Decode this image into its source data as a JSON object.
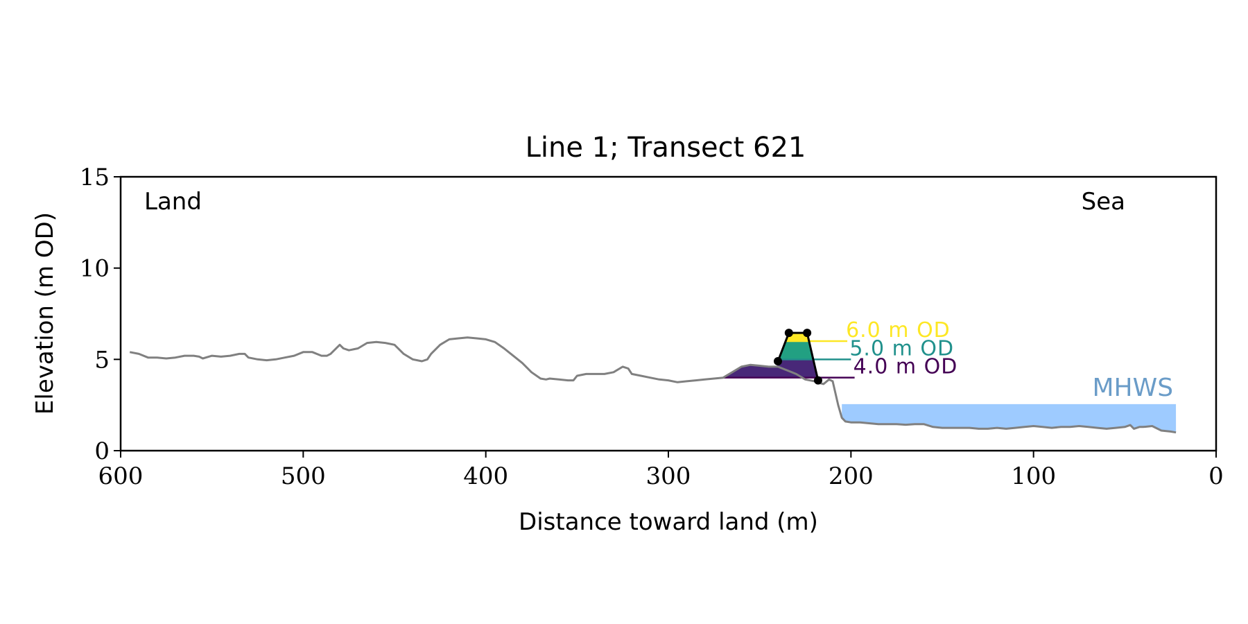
{
  "chart_data": {
    "type": "line",
    "title": "Line 1; Transect 621",
    "xlabel": "Distance toward land (m)",
    "ylabel": "Elevation (m OD)",
    "xlim": [
      600,
      0
    ],
    "ylim": [
      0,
      15
    ],
    "x_ticks": [
      "600",
      "500",
      "400",
      "300",
      "200",
      "100",
      "0"
    ],
    "y_ticks": [
      "15",
      "10",
      "5",
      "0"
    ],
    "grid": false,
    "legend": null,
    "region_labels": {
      "left": "Land",
      "right": "Sea"
    },
    "profile": {
      "color": "#808080",
      "x": [
        595,
        590,
        585,
        580,
        575,
        570,
        565,
        560,
        557,
        555,
        550,
        545,
        540,
        535,
        532,
        530,
        525,
        520,
        515,
        510,
        505,
        500,
        495,
        490,
        487,
        485,
        480,
        478,
        475,
        470,
        465,
        460,
        455,
        450,
        445,
        440,
        435,
        432,
        430,
        425,
        420,
        415,
        410,
        405,
        400,
        395,
        390,
        385,
        380,
        375,
        370,
        367,
        365,
        360,
        355,
        352,
        350,
        345,
        340,
        335,
        330,
        325,
        322,
        320,
        315,
        310,
        305,
        300,
        295,
        290,
        285,
        280,
        275,
        270,
        265,
        260,
        255,
        250,
        245,
        240,
        235,
        230,
        225,
        220,
        217,
        215,
        212,
        210,
        207,
        205,
        203,
        200,
        195,
        190,
        185,
        180,
        175,
        170,
        165,
        160,
        155,
        150,
        145,
        140,
        135,
        130,
        125,
        120,
        115,
        110,
        105,
        100,
        95,
        90,
        85,
        80,
        75,
        70,
        65,
        60,
        55,
        50,
        47,
        45,
        42,
        40,
        35,
        30,
        25,
        22
      ],
      "y": [
        5.4,
        5.3,
        5.1,
        5.1,
        5.05,
        5.1,
        5.2,
        5.2,
        5.15,
        5.05,
        5.2,
        5.15,
        5.2,
        5.3,
        5.3,
        5.1,
        5.0,
        4.95,
        5.0,
        5.1,
        5.2,
        5.4,
        5.4,
        5.2,
        5.2,
        5.3,
        5.8,
        5.6,
        5.5,
        5.6,
        5.9,
        5.95,
        5.9,
        5.8,
        5.3,
        5.0,
        4.9,
        5.0,
        5.3,
        5.8,
        6.1,
        6.15,
        6.2,
        6.15,
        6.1,
        5.95,
        5.6,
        5.2,
        4.8,
        4.3,
        3.95,
        3.9,
        3.95,
        3.9,
        3.85,
        3.85,
        4.1,
        4.2,
        4.2,
        4.2,
        4.3,
        4.6,
        4.5,
        4.2,
        4.1,
        4.0,
        3.9,
        3.85,
        3.75,
        3.8,
        3.85,
        3.9,
        3.95,
        4.0,
        4.3,
        4.6,
        4.7,
        4.65,
        4.6,
        4.6,
        4.4,
        4.2,
        3.9,
        3.8,
        3.7,
        3.65,
        3.9,
        3.8,
        2.5,
        1.8,
        1.6,
        1.55,
        1.55,
        1.5,
        1.45,
        1.45,
        1.45,
        1.42,
        1.45,
        1.45,
        1.3,
        1.25,
        1.25,
        1.25,
        1.25,
        1.2,
        1.2,
        1.25,
        1.2,
        1.25,
        1.3,
        1.35,
        1.3,
        1.25,
        1.3,
        1.3,
        1.35,
        1.3,
        1.25,
        1.2,
        1.25,
        1.3,
        1.4,
        1.2,
        1.3,
        1.3,
        1.35,
        1.1,
        1.05,
        1.0
      ]
    },
    "dune": {
      "color": "#000000",
      "points": {
        "x": [
          240,
          234,
          224,
          218
        ],
        "y": [
          4.9,
          6.45,
          6.45,
          3.85
        ]
      }
    },
    "levels": [
      {
        "label": "4.0 m OD",
        "value": 4.0,
        "color": "#440154",
        "fill": "#482878",
        "x_start": 270,
        "x_end": 198
      },
      {
        "label": "5.0 m OD",
        "value": 5.0,
        "color": "#21918c",
        "fill": "#22a082",
        "x_start": 239,
        "x_end": 200
      },
      {
        "label": "6.0 m OD",
        "value": 6.0,
        "color": "#fde725",
        "fill": "#fde725",
        "x_start": 236,
        "x_end": 202
      }
    ],
    "mhws": {
      "label": "MHWS",
      "value": 2.55,
      "x_start": 205,
      "x_end": 22,
      "fill": "#9ecbff",
      "text_color": "#6a9cc8"
    }
  }
}
